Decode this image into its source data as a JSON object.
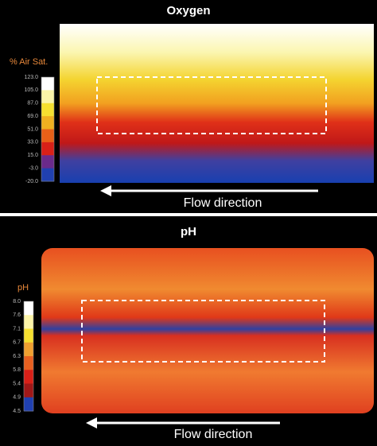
{
  "panels": [
    {
      "title": "Oxygen",
      "scale_label": "% Air Sat.",
      "scale_ticks": [
        "123.0",
        "105.0",
        "87.0",
        "69.0",
        "51.0",
        "33.0",
        "15.0",
        "-3.0",
        "-20.0"
      ],
      "caption": "Flow direction"
    },
    {
      "title": "pH",
      "scale_label": "pH",
      "scale_ticks": [
        "8.0",
        "7.6",
        "7.1",
        "6.7",
        "6.3",
        "5.8",
        "5.4",
        "4.9",
        "4.5"
      ],
      "caption": "Flow direction"
    }
  ]
}
